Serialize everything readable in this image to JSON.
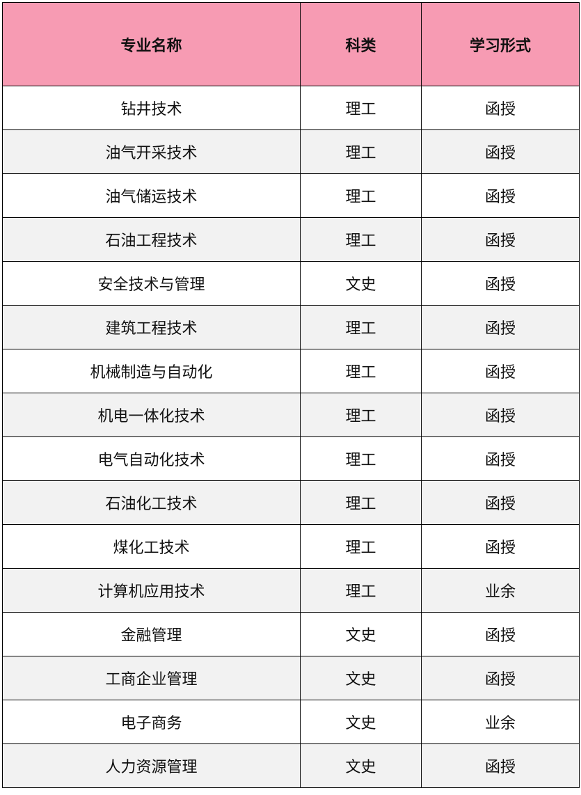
{
  "table": {
    "header_color": "#f79bb3",
    "headers": [
      "专业名称",
      "科类",
      "学习形式"
    ],
    "rows": [
      [
        "钻井技术",
        "理工",
        "函授"
      ],
      [
        "油气开采技术",
        "理工",
        "函授"
      ],
      [
        "油气储运技术",
        "理工",
        "函授"
      ],
      [
        "石油工程技术",
        "理工",
        "函授"
      ],
      [
        "安全技术与管理",
        "文史",
        "函授"
      ],
      [
        "建筑工程技术",
        "理工",
        "函授"
      ],
      [
        "机械制造与自动化",
        "理工",
        "函授"
      ],
      [
        "机电一体化技术",
        "理工",
        "函授"
      ],
      [
        "电气自动化技术",
        "理工",
        "函授"
      ],
      [
        "石油化工技术",
        "理工",
        "函授"
      ],
      [
        "煤化工技术",
        "理工",
        "函授"
      ],
      [
        "计算机应用技术",
        "理工",
        "业余"
      ],
      [
        "金融管理",
        "文史",
        "函授"
      ],
      [
        "工商企业管理",
        "文史",
        "函授"
      ],
      [
        "电子商务",
        "文史",
        "业余"
      ],
      [
        "人力资源管理",
        "文史",
        "函授"
      ]
    ]
  }
}
